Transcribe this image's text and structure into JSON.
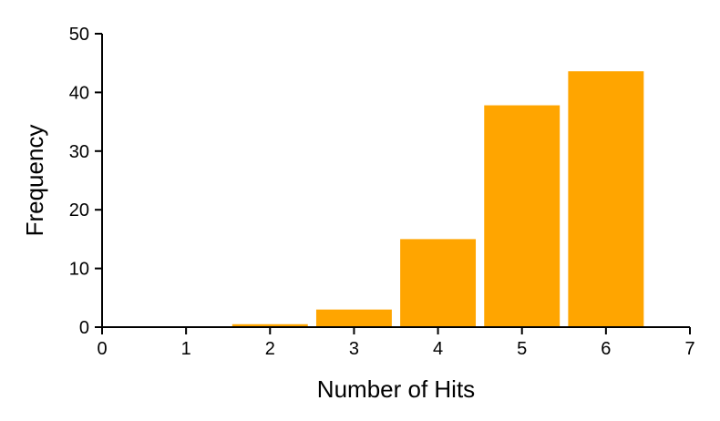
{
  "chart_data": {
    "type": "bar",
    "x": [
      2,
      3,
      4,
      5,
      6
    ],
    "values": [
      0.5,
      3,
      15,
      37.8,
      43.6
    ],
    "bar_width": 0.9,
    "xlabel": "Number of Hits",
    "ylabel": "Frequency",
    "xlim": [
      0,
      7
    ],
    "ylim": [
      0,
      50
    ],
    "xticks": [
      "0",
      "1",
      "2",
      "3",
      "4",
      "5",
      "6",
      "7"
    ],
    "yticks": [
      "0",
      "10",
      "20",
      "30",
      "40",
      "50"
    ],
    "grid": false,
    "bar_color": "#FFA500"
  }
}
